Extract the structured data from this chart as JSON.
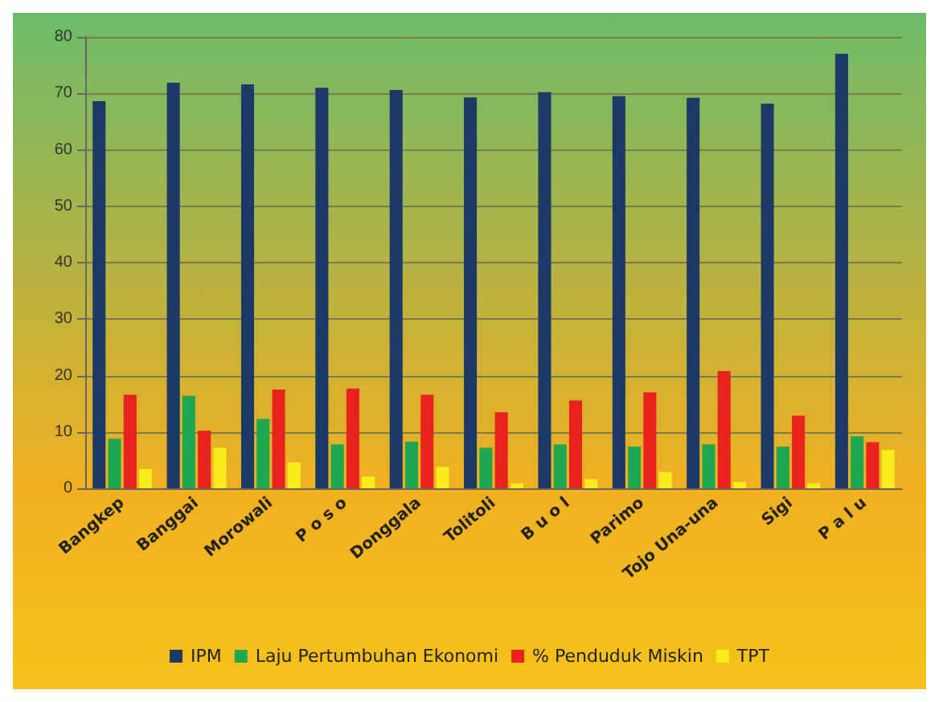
{
  "chart_data": {
    "type": "bar",
    "categories": [
      "Bangkep",
      "Banggai",
      "Morowali",
      "P o s o",
      "Donggala",
      "Tolitoli",
      "B u o l",
      "Parimo",
      "Tojo Una-una",
      "Sigi",
      "P a l u"
    ],
    "series": [
      {
        "name": "IPM",
        "color": "#1b3a66",
        "values": [
          68.6,
          71.9,
          71.6,
          71.0,
          70.6,
          69.3,
          70.2,
          69.5,
          69.2,
          68.2,
          77.0
        ]
      },
      {
        "name": "Laju Pertumbuhan Ekonomi",
        "color": "#1fa84f",
        "values": [
          8.8,
          16.4,
          12.3,
          7.8,
          8.3,
          7.2,
          7.8,
          7.4,
          7.8,
          7.4,
          9.2
        ]
      },
      {
        "name": "% Penduduk Miskin",
        "color": "#e8231d",
        "values": [
          16.6,
          10.2,
          17.5,
          17.7,
          16.6,
          13.5,
          15.6,
          17.0,
          20.8,
          12.9,
          8.2
        ]
      },
      {
        "name": "TPT",
        "color": "#f7ec1c",
        "values": [
          3.4,
          7.2,
          4.6,
          2.1,
          3.8,
          0.9,
          1.6,
          2.9,
          1.1,
          0.9,
          6.8
        ]
      }
    ],
    "ylim": [
      0,
      80
    ],
    "yticks": [
      0,
      10,
      20,
      30,
      40,
      50,
      60,
      70,
      80
    ],
    "grid": "y",
    "legend": "bottom"
  }
}
